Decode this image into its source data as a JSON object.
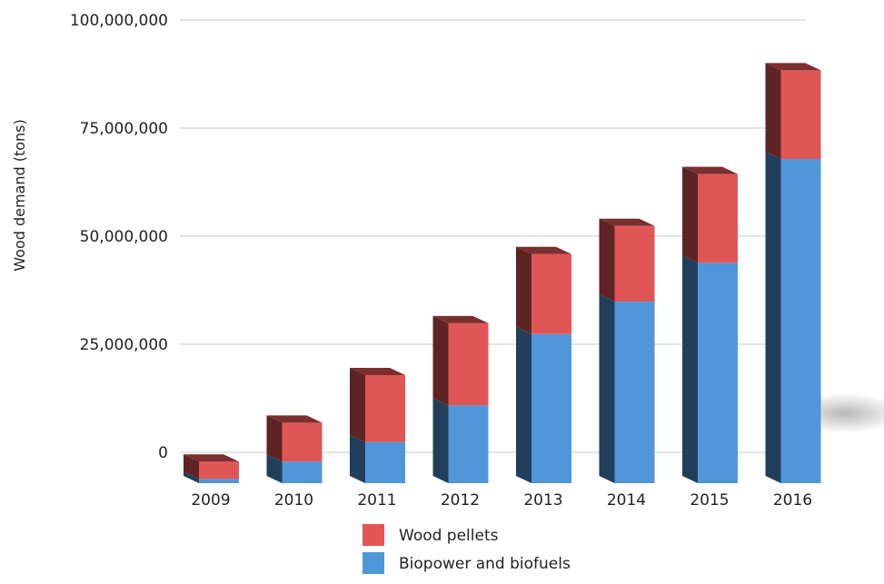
{
  "chart_data": {
    "type": "bar",
    "stacked": true,
    "three_d": true,
    "categories": [
      "2009",
      "2010",
      "2011",
      "2012",
      "2013",
      "2014",
      "2015",
      "2016"
    ],
    "series": [
      {
        "name": "Biopower and biofuels",
        "color": "#4f97d9",
        "values": [
          1000000,
          5000000,
          9500000,
          18000000,
          34500000,
          42000000,
          51000000,
          75000000
        ]
      },
      {
        "name": "Wood pellets",
        "color": "#e05656",
        "values": [
          4000000,
          9000000,
          15500000,
          19000000,
          18500000,
          17500000,
          20500000,
          20500000
        ]
      }
    ],
    "xlabel": "",
    "ylabel": "Wood demand (tons)",
    "ylim": [
      0,
      100000000
    ],
    "yticks": [
      0,
      25000000,
      50000000,
      75000000,
      100000000
    ],
    "ytick_labels": [
      "0",
      "25,000,000",
      "50,000,000",
      "75,000,000",
      "100,000,000"
    ],
    "grid": true,
    "legend_position": "bottom"
  }
}
